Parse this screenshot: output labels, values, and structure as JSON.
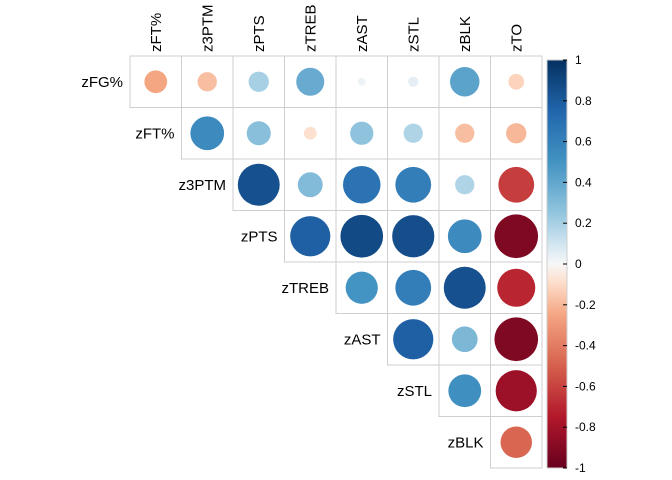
{
  "chart_data": {
    "type": "heatmap",
    "subtype": "correlation-upper-triangle-circles",
    "row_labels": [
      "zFG%",
      "zFT%",
      "z3PTM",
      "zPTS",
      "zTREB",
      "zAST",
      "zSTL",
      "zBLK"
    ],
    "col_labels": [
      "zFT%",
      "z3PTM",
      "zPTS",
      "zTREB",
      "zAST",
      "zSTL",
      "zBLK",
      "zTO"
    ],
    "values": [
      [
        -0.25,
        -0.18,
        0.2,
        0.38,
        0.03,
        0.05,
        0.42,
        -0.12
      ],
      [
        null,
        0.55,
        0.28,
        -0.08,
        0.26,
        0.18,
        -0.18,
        -0.2
      ],
      [
        null,
        null,
        0.85,
        0.3,
        0.68,
        0.62,
        0.18,
        -0.62
      ],
      [
        null,
        null,
        null,
        0.78,
        0.88,
        0.86,
        0.55,
        -0.92
      ],
      [
        null,
        null,
        null,
        null,
        0.5,
        0.62,
        0.85,
        -0.7
      ],
      [
        null,
        null,
        null,
        null,
        null,
        0.78,
        0.32,
        -0.92
      ],
      [
        null,
        null,
        null,
        null,
        null,
        null,
        0.52,
        -0.82
      ],
      [
        null,
        null,
        null,
        null,
        null,
        null,
        null,
        -0.48
      ]
    ],
    "colorbar": {
      "min": -1,
      "max": 1,
      "ticks": [
        "-1",
        "-0.8",
        "-0.6",
        "-0.4",
        "-0.2",
        "0",
        "0.2",
        "0.4",
        "0.6",
        "0.8",
        "1"
      ],
      "low_color": "#67001F",
      "mid_color": "#F7F7F7",
      "high_color": "#053061"
    }
  }
}
